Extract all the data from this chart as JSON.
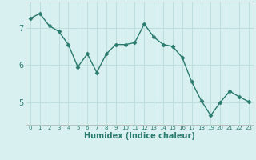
{
  "xlabel": "Humidex (Indice chaleur)",
  "x": [
    0,
    1,
    2,
    3,
    4,
    5,
    6,
    7,
    8,
    9,
    10,
    11,
    12,
    13,
    14,
    15,
    16,
    17,
    18,
    19,
    20,
    21,
    22,
    23
  ],
  "y": [
    7.25,
    7.38,
    7.05,
    6.9,
    6.55,
    5.95,
    6.3,
    5.8,
    6.3,
    6.55,
    6.55,
    6.6,
    7.1,
    6.75,
    6.55,
    6.5,
    6.2,
    5.55,
    5.05,
    4.65,
    5.0,
    5.3,
    5.15,
    5.02
  ],
  "line_color": "#2a7a6e",
  "bg_color": "#d8f0f0",
  "grid_color": "#c0dede",
  "yticks": [
    5,
    6,
    7
  ],
  "ylim": [
    4.4,
    7.7
  ],
  "xlim": [
    -0.5,
    23.5
  ],
  "xlabel_fontsize": 7,
  "ytick_fontsize": 7,
  "xtick_fontsize": 5
}
